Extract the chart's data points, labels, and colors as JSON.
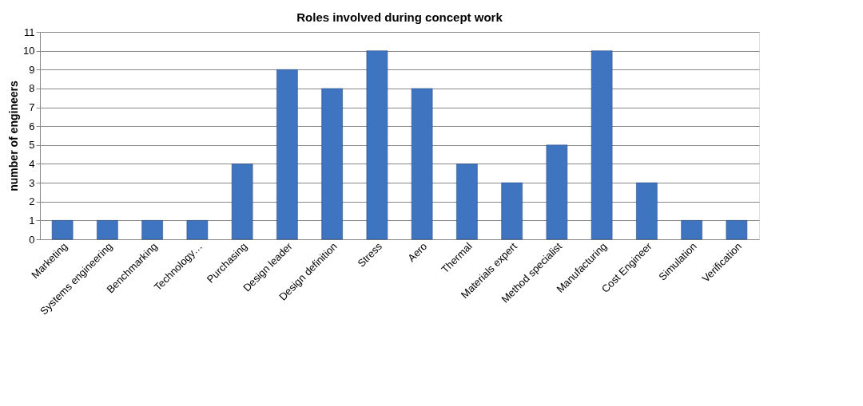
{
  "chart_data": {
    "type": "bar",
    "title": "Roles involved during concept work",
    "ylabel": "number of engineers",
    "categories": [
      "Marketing",
      "Systems engineering",
      "Benchmarking",
      "Technology…",
      "Purchasing",
      "Design leader",
      "Design definition",
      "Stress",
      "Aero",
      "Thermal",
      "Materials expert",
      "Method specialist",
      "Manufacturing",
      "Cost Engineer",
      "Simulation",
      "Verification"
    ],
    "values": [
      1,
      1,
      1,
      1,
      4,
      9,
      8,
      10,
      8,
      4,
      3,
      5,
      10,
      3,
      1,
      1
    ],
    "color": "#3f74c0",
    "ylim": [
      0,
      11
    ],
    "yticks": [
      0,
      1,
      2,
      3,
      4,
      5,
      6,
      7,
      8,
      9,
      10,
      11
    ],
    "grid": "y"
  }
}
